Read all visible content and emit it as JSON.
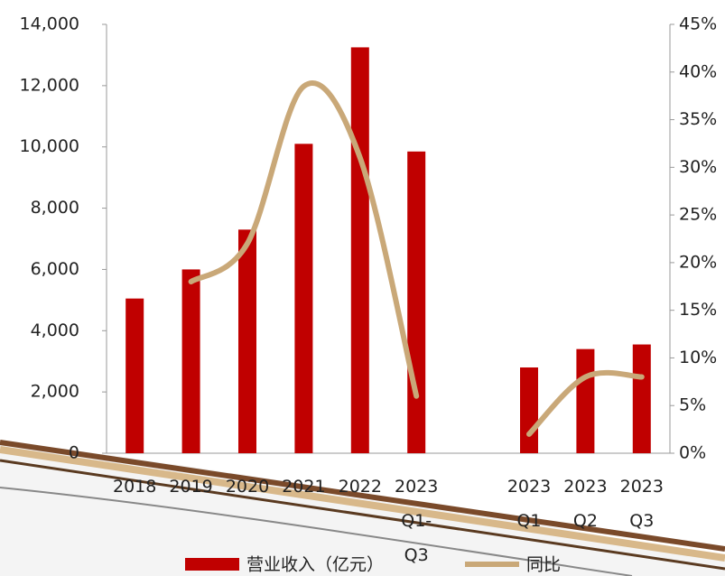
{
  "chart_data": {
    "type": "bar-line",
    "categories": [
      "2018",
      "2019",
      "2020",
      "2021",
      "2022",
      "2023 Q1-Q3",
      null,
      "2023 Q1",
      "2023 Q2",
      "2023 Q3"
    ],
    "series": [
      {
        "name": "营业收入（亿元）",
        "type": "bar",
        "color": "#c00000",
        "values": [
          5050,
          6000,
          7300,
          10100,
          13250,
          9850,
          null,
          2800,
          3400,
          3550
        ]
      },
      {
        "name": "同比",
        "type": "line",
        "axis": "y2",
        "color": "#c9a878",
        "values": [
          null,
          18,
          22,
          38.5,
          31,
          6,
          null,
          2,
          8,
          8
        ]
      }
    ],
    "ylim": [
      0,
      14000
    ],
    "yticks": [
      0,
      {
        "value": 2000,
        "label": "2,000"
      },
      {
        "value": 4000,
        "label": "4,000"
      },
      {
        "value": 6000,
        "label": "6,000"
      },
      {
        "value": 8000,
        "label": "8,000"
      },
      {
        "value": 10000,
        "label": "10,000"
      },
      {
        "value": 12000,
        "label": "12,000"
      },
      {
        "value": 14000,
        "label": "14,000"
      }
    ],
    "y2lim": [
      0,
      45
    ],
    "y2ticks": [
      {
        "value": 0,
        "label": "0%"
      },
      {
        "value": 5,
        "label": "5%"
      },
      {
        "value": 10,
        "label": "10%"
      },
      {
        "value": 15,
        "label": "15%"
      },
      {
        "value": 20,
        "label": "20%"
      },
      {
        "value": 25,
        "label": "25%"
      },
      {
        "value": 30,
        "label": "30%"
      },
      {
        "value": 35,
        "label": "35%"
      },
      {
        "value": 40,
        "label": "40%"
      },
      {
        "value": 45,
        "label": "45%"
      }
    ],
    "grid": false
  }
}
